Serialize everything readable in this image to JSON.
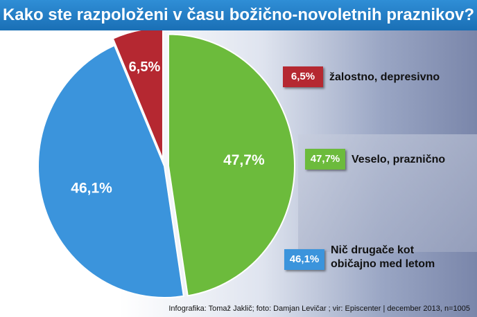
{
  "title": "Kako ste razpoloženi v času božično-novoletnih praznikov?",
  "chart_data": {
    "type": "pie",
    "slices": [
      {
        "label": "žalostno, depresivno",
        "value": 6.5,
        "display": "6,5%",
        "color": "#b52831"
      },
      {
        "label": "Veselo, praznično",
        "value": 47.7,
        "display": "47,7%",
        "color": "#6cbb3c"
      },
      {
        "label": "Nič drugače kot\nobičajno med letom",
        "value": 46.1,
        "display": "46,1%",
        "color": "#3b94dc"
      }
    ],
    "legend_placement": "right"
  },
  "credit": "Infografika: Tomaž Jaklič; foto: Damjan Levičar ; vir: Episcenter   |  december 2013, n=1005"
}
